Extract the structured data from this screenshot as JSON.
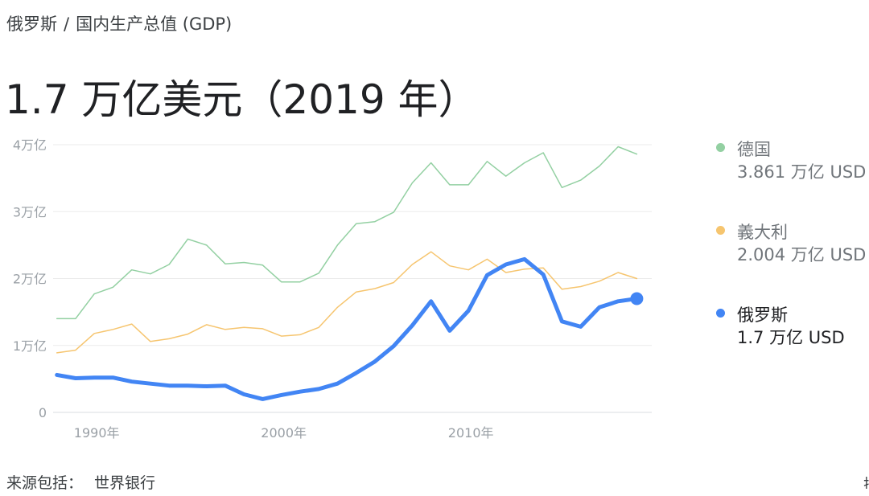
{
  "breadcrumb": {
    "country": "俄罗斯",
    "separator": "/",
    "indicator": "国内生产总值 (GDP)"
  },
  "headline": "1.7 万亿美元（2019 年）",
  "legend": [
    {
      "name": "德国",
      "value": "3.861 万亿 USD",
      "color": "#93d0a2",
      "emphasis": false
    },
    {
      "name": "義大利",
      "value": "2.004 万亿 USD",
      "color": "#f6c56f",
      "emphasis": false
    },
    {
      "name": "俄罗斯",
      "value": "1.7 万亿 USD",
      "color": "#4285f4",
      "emphasis": true
    }
  ],
  "source": {
    "label": "来源包括：",
    "link": "世界银行"
  },
  "edge_text": "搜",
  "chart_data": {
    "type": "line",
    "unit": "万亿美元",
    "x": [
      1988,
      1989,
      1990,
      1991,
      1992,
      1993,
      1994,
      1995,
      1996,
      1997,
      1998,
      1999,
      2000,
      2001,
      2002,
      2003,
      2004,
      2005,
      2006,
      2007,
      2008,
      2009,
      2010,
      2011,
      2012,
      2013,
      2014,
      2015,
      2016,
      2017,
      2018,
      2019
    ],
    "ylim": [
      0,
      4
    ],
    "yticks": [
      {
        "value": 0,
        "label": "0"
      },
      {
        "value": 1,
        "label": "1万亿"
      },
      {
        "value": 2,
        "label": "2万亿"
      },
      {
        "value": 3,
        "label": "3万亿"
      },
      {
        "value": 4,
        "label": "4万亿"
      }
    ],
    "xticks": [
      {
        "value": 1990,
        "label": "1990年"
      },
      {
        "value": 2000,
        "label": "2000年"
      },
      {
        "value": 2010,
        "label": "2010年"
      }
    ],
    "grid": true,
    "series": [
      {
        "name": "德国",
        "color": "#93d0a2",
        "width": 1.5,
        "values": [
          1.4,
          1.4,
          1.77,
          1.87,
          2.13,
          2.07,
          2.21,
          2.59,
          2.5,
          2.22,
          2.24,
          2.2,
          1.95,
          1.95,
          2.08,
          2.5,
          2.82,
          2.85,
          2.99,
          3.43,
          3.73,
          3.4,
          3.4,
          3.75,
          3.53,
          3.73,
          3.88,
          3.36,
          3.47,
          3.68,
          3.97,
          3.86
        ]
      },
      {
        "name": "義大利",
        "color": "#f6c56f",
        "width": 1.5,
        "values": [
          0.89,
          0.93,
          1.18,
          1.24,
          1.32,
          1.06,
          1.1,
          1.17,
          1.31,
          1.24,
          1.27,
          1.25,
          1.14,
          1.16,
          1.27,
          1.57,
          1.8,
          1.85,
          1.94,
          2.21,
          2.4,
          2.19,
          2.13,
          2.29,
          2.09,
          2.14,
          2.16,
          1.84,
          1.88,
          1.96,
          2.09,
          2.0
        ]
      },
      {
        "name": "俄罗斯",
        "color": "#4285f4",
        "width": 5,
        "values": [
          0.56,
          0.51,
          0.52,
          0.52,
          0.46,
          0.43,
          0.4,
          0.4,
          0.39,
          0.4,
          0.27,
          0.2,
          0.26,
          0.31,
          0.35,
          0.43,
          0.59,
          0.76,
          0.99,
          1.3,
          1.66,
          1.22,
          1.52,
          2.05,
          2.21,
          2.29,
          2.06,
          1.36,
          1.28,
          1.57,
          1.66,
          1.7
        ],
        "end_marker": true
      }
    ]
  }
}
